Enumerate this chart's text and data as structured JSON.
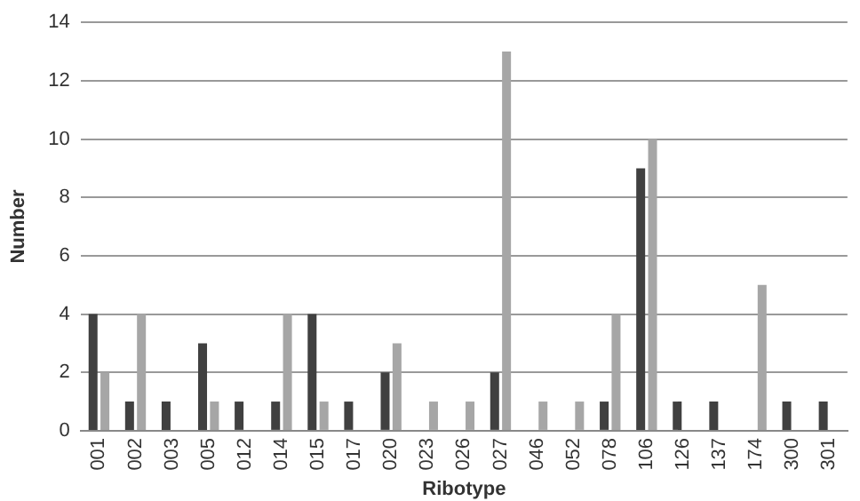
{
  "chart_data": {
    "type": "bar",
    "xlabel": "Ribotype",
    "ylabel": "Number",
    "categories": [
      "001",
      "002",
      "003",
      "005",
      "012",
      "014",
      "015",
      "017",
      "020",
      "023",
      "026",
      "027",
      "046",
      "052",
      "078",
      "106",
      "126",
      "137",
      "174",
      "300",
      "301"
    ],
    "series": [
      {
        "color": "#404040",
        "values": [
          4,
          1,
          1,
          3,
          1,
          1,
          4,
          1,
          2,
          0,
          0,
          2,
          0,
          0,
          1,
          9,
          1,
          1,
          0,
          1,
          1
        ]
      },
      {
        "color": "#a6a6a6",
        "values": [
          2,
          4,
          0,
          1,
          0,
          4,
          1,
          0,
          3,
          1,
          1,
          13,
          1,
          1,
          4,
          10,
          0,
          0,
          5,
          0,
          0
        ]
      }
    ],
    "ylim": [
      0,
      14
    ],
    "yticks": [
      0,
      2,
      4,
      6,
      8,
      10,
      12,
      14
    ],
    "grid": "y",
    "legend": false
  }
}
